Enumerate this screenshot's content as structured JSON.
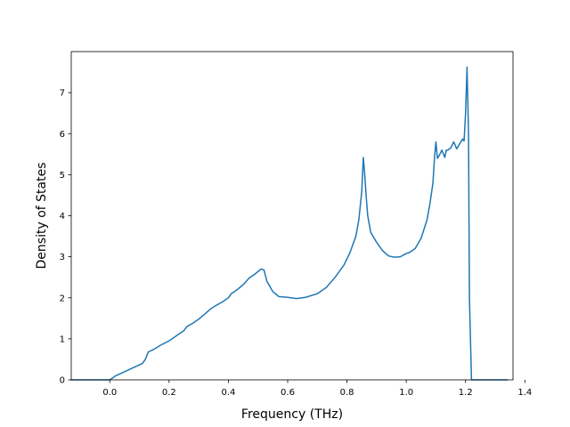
{
  "chart_data": {
    "type": "line",
    "title": "",
    "xlabel": "Frequency (THz)",
    "ylabel": "Density of States",
    "xlim": [
      -0.13,
      1.36
    ],
    "ylim": [
      0,
      8
    ],
    "x_ticks": [
      0.0,
      0.2,
      0.4,
      0.6,
      0.8,
      1.0,
      1.2,
      1.4
    ],
    "x_tick_labels": [
      "0.0",
      "0.2",
      "0.4",
      "0.6",
      "0.8",
      "1.0",
      "1.2",
      "1.4"
    ],
    "y_ticks": [
      0,
      1,
      2,
      3,
      4,
      5,
      6,
      7
    ],
    "y_tick_labels": [
      "0",
      "1",
      "2",
      "3",
      "4",
      "5",
      "6",
      "7"
    ],
    "grid": false,
    "legend": "none",
    "series": [
      {
        "color": "#1f77b4",
        "x": [
          -0.13,
          0.0,
          0.02,
          0.05,
          0.08,
          0.11,
          0.12,
          0.13,
          0.15,
          0.17,
          0.2,
          0.23,
          0.25,
          0.26,
          0.28,
          0.3,
          0.32,
          0.34,
          0.36,
          0.38,
          0.4,
          0.41,
          0.43,
          0.45,
          0.47,
          0.49,
          0.51,
          0.52,
          0.53,
          0.55,
          0.57,
          0.6,
          0.63,
          0.66,
          0.7,
          0.73,
          0.76,
          0.79,
          0.81,
          0.83,
          0.84,
          0.85,
          0.855,
          0.86,
          0.865,
          0.87,
          0.88,
          0.9,
          0.92,
          0.94,
          0.96,
          0.98,
          1.0,
          1.01,
          1.03,
          1.05,
          1.07,
          1.08,
          1.09,
          1.095,
          1.1,
          1.105,
          1.11,
          1.12,
          1.13,
          1.135,
          1.14,
          1.15,
          1.16,
          1.17,
          1.18,
          1.19,
          1.195,
          1.2,
          1.205,
          1.21,
          1.213,
          1.22,
          1.25,
          1.3,
          1.34
        ],
        "y": [
          0,
          0,
          0.1,
          0.2,
          0.3,
          0.4,
          0.5,
          0.68,
          0.75,
          0.84,
          0.95,
          1.1,
          1.2,
          1.3,
          1.38,
          1.48,
          1.6,
          1.73,
          1.82,
          1.9,
          2.0,
          2.1,
          2.2,
          2.32,
          2.48,
          2.58,
          2.7,
          2.68,
          2.4,
          2.15,
          2.03,
          2.01,
          1.98,
          2.01,
          2.1,
          2.25,
          2.5,
          2.8,
          3.1,
          3.5,
          3.9,
          4.6,
          5.42,
          5.0,
          4.45,
          4.0,
          3.6,
          3.35,
          3.15,
          3.02,
          2.99,
          3.0,
          3.08,
          3.1,
          3.2,
          3.45,
          3.9,
          4.3,
          4.8,
          5.4,
          5.8,
          5.4,
          5.45,
          5.6,
          5.42,
          5.6,
          5.6,
          5.65,
          5.8,
          5.63,
          5.75,
          5.87,
          5.82,
          6.5,
          7.62,
          6.0,
          2.0,
          0,
          0,
          0,
          0
        ]
      }
    ]
  }
}
